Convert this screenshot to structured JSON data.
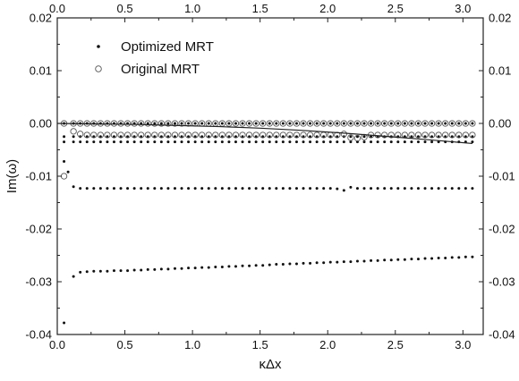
{
  "chart_data": {
    "type": "scatter",
    "xlabel": "κΔx",
    "ylabel": "Im(ω)",
    "xlim": [
      0,
      3.15
    ],
    "ylim": [
      -0.04,
      0.02
    ],
    "x_ticks": [
      "0.0",
      "0.5",
      "1.0",
      "1.5",
      "2.0",
      "2.5",
      "3.0"
    ],
    "y_ticks": [
      "-0.04",
      "-0.03",
      "-0.02",
      "-0.01",
      "0.00",
      "0.01",
      "0.02"
    ],
    "grid": false,
    "axes_mirrored": true,
    "legend_position": "top-left",
    "legend": [
      "Optimized MRT",
      "Original MRT"
    ],
    "colors": {
      "optimized": "#111111",
      "original": "#555555"
    },
    "series": [
      {
        "name": "Optimized MRT",
        "marker": "dot",
        "branches": [
          {
            "x": [
              0.05,
              0.12,
              0.17,
              0.22,
              0.27,
              0.32,
              0.37,
              0.42,
              0.47,
              0.52,
              0.57,
              0.62,
              0.67,
              0.72,
              0.77,
              0.82,
              0.87,
              0.92,
              0.97,
              1.02,
              1.07,
              1.12,
              1.17,
              1.22,
              1.27,
              1.32,
              1.37,
              1.42,
              1.47,
              1.52,
              1.57,
              1.62,
              1.67,
              1.72,
              1.77,
              1.82,
              1.87,
              1.92,
              1.97,
              2.02,
              2.07,
              2.12,
              2.17,
              2.22,
              2.27,
              2.32,
              2.37,
              2.42,
              2.47,
              2.52,
              2.57,
              2.62,
              2.67,
              2.72,
              2.77,
              2.82,
              2.87,
              2.92,
              2.97,
              3.02,
              3.07
            ],
            "y": [
              0,
              0,
              0,
              0,
              0,
              0,
              0,
              0,
              0,
              0,
              0,
              0,
              0,
              0,
              0,
              0,
              0,
              0,
              0,
              0,
              0,
              0,
              0,
              0,
              0,
              0,
              0,
              0,
              0,
              0,
              0,
              0,
              0,
              0,
              0,
              0,
              0,
              0,
              0,
              0,
              0,
              0,
              0,
              0,
              0,
              0,
              0,
              0,
              0,
              0,
              0,
              0,
              0,
              0,
              0,
              0,
              0,
              0,
              0,
              0,
              0
            ]
          },
          {
            "x": [
              0.05,
              0.12,
              0.17,
              0.22,
              0.27,
              0.32,
              0.37,
              0.42,
              0.47,
              0.52,
              0.57,
              0.62,
              0.67,
              0.72,
              0.77,
              0.82,
              0.87,
              0.92,
              0.97,
              1.02,
              1.07,
              1.12,
              1.17,
              1.22,
              1.27,
              1.32,
              1.37,
              1.42,
              1.47,
              1.52,
              1.57,
              1.62,
              1.67,
              1.72,
              1.77,
              1.82,
              1.87,
              1.92,
              1.97,
              2.02,
              2.07,
              2.12,
              2.17,
              2.22,
              2.27,
              2.32,
              2.37,
              2.42,
              2.47,
              2.52,
              2.57,
              2.62,
              2.67,
              2.72,
              2.77,
              2.82,
              2.87,
              2.92,
              2.97,
              3.02,
              3.07
            ],
            "y": [
              -0.0025,
              -0.0025,
              -0.0025,
              -0.0025,
              -0.0025,
              -0.0025,
              -0.0025,
              -0.0025,
              -0.0025,
              -0.0025,
              -0.0025,
              -0.0025,
              -0.0025,
              -0.0025,
              -0.0025,
              -0.0025,
              -0.0025,
              -0.0025,
              -0.0025,
              -0.0025,
              -0.0025,
              -0.0025,
              -0.0025,
              -0.0025,
              -0.0025,
              -0.0025,
              -0.0025,
              -0.0025,
              -0.0025,
              -0.0025,
              -0.0025,
              -0.0025,
              -0.0025,
              -0.0025,
              -0.0025,
              -0.0025,
              -0.0025,
              -0.0025,
              -0.0025,
              -0.0025,
              -0.0025,
              -0.0025,
              -0.0025,
              -0.0025,
              -0.0025,
              -0.0025,
              -0.0025,
              -0.0025,
              -0.0025,
              -0.0025,
              -0.0025,
              -0.0025,
              -0.0025,
              -0.0025,
              -0.0025,
              -0.0025,
              -0.0025,
              -0.0025,
              -0.0025,
              -0.0025,
              -0.0025
            ]
          },
          {
            "x": [
              0.05,
              0.12,
              0.17,
              0.22,
              0.27,
              0.32,
              0.37,
              0.42,
              0.47,
              0.52,
              0.57,
              0.62,
              0.67,
              0.72,
              0.77,
              0.82,
              0.87,
              0.92,
              0.97,
              1.02,
              1.07,
              1.12,
              1.17,
              1.22,
              1.27,
              1.32,
              1.37,
              1.42,
              1.47,
              1.52,
              1.57,
              1.62,
              1.67,
              1.72,
              1.77,
              1.82,
              1.87,
              1.92,
              1.97,
              2.02,
              2.07,
              2.12,
              2.17,
              2.22,
              2.27,
              2.32,
              2.37,
              2.42,
              2.47,
              2.52,
              2.57,
              2.62,
              2.67,
              2.72,
              2.77,
              2.82,
              2.87,
              2.92,
              2.97,
              3.02,
              3.07
            ],
            "y": [
              -0.0035,
              -0.0035,
              -0.0035,
              -0.0035,
              -0.0035,
              -0.0035,
              -0.0035,
              -0.0035,
              -0.0035,
              -0.0035,
              -0.0035,
              -0.0035,
              -0.0035,
              -0.0035,
              -0.0035,
              -0.0035,
              -0.0035,
              -0.0035,
              -0.0035,
              -0.0035,
              -0.0035,
              -0.0035,
              -0.0035,
              -0.0035,
              -0.0035,
              -0.0035,
              -0.0035,
              -0.0035,
              -0.0035,
              -0.0035,
              -0.0035,
              -0.0035,
              -0.0035,
              -0.0035,
              -0.0035,
              -0.0035,
              -0.0035,
              -0.0035,
              -0.0035,
              -0.0035,
              -0.0035,
              -0.0035,
              -0.0035,
              -0.0035,
              -0.0035,
              -0.0035,
              -0.0035,
              -0.0035,
              -0.0035,
              -0.0035,
              -0.0035,
              -0.0035,
              -0.0035,
              -0.0035,
              -0.0035,
              -0.0035,
              -0.0035,
              -0.0035,
              -0.0035,
              -0.0035,
              -0.0035
            ]
          },
          {
            "x": [
              0.05,
              0.08,
              0.12,
              0.17,
              0.22,
              0.27,
              0.32,
              0.37,
              0.42,
              0.47,
              0.52,
              0.57,
              0.62,
              0.67,
              0.72,
              0.77,
              0.82,
              0.87,
              0.92,
              0.97,
              1.02,
              1.07,
              1.12,
              1.17,
              1.22,
              1.27,
              1.32,
              1.37,
              1.42,
              1.47,
              1.52,
              1.57,
              1.62,
              1.67,
              1.72,
              1.77,
              1.82,
              1.87,
              1.92,
              1.97,
              2.02,
              2.07,
              2.12,
              2.17,
              2.22,
              2.27,
              2.32,
              2.37,
              2.42,
              2.47,
              2.52,
              2.57,
              2.62,
              2.67,
              2.72,
              2.77,
              2.82,
              2.87,
              2.92,
              2.97,
              3.02,
              3.07
            ],
            "y": [
              -0.0072,
              -0.0092,
              -0.012,
              -0.0123,
              -0.0123,
              -0.0123,
              -0.0123,
              -0.0123,
              -0.0123,
              -0.0123,
              -0.0123,
              -0.0123,
              -0.0123,
              -0.0123,
              -0.0123,
              -0.0123,
              -0.0123,
              -0.0123,
              -0.0123,
              -0.0123,
              -0.0123,
              -0.0123,
              -0.0123,
              -0.0123,
              -0.0123,
              -0.0123,
              -0.0123,
              -0.0123,
              -0.0123,
              -0.0123,
              -0.0123,
              -0.0123,
              -0.0123,
              -0.0123,
              -0.0123,
              -0.0123,
              -0.0123,
              -0.0123,
              -0.0123,
              -0.0123,
              -0.0123,
              -0.0124,
              -0.0127,
              -0.0121,
              -0.0123,
              -0.0123,
              -0.0123,
              -0.0123,
              -0.0123,
              -0.0123,
              -0.0123,
              -0.0123,
              -0.0123,
              -0.0123,
              -0.0123,
              -0.0123,
              -0.0123,
              -0.0123,
              -0.0123,
              -0.0123,
              -0.0123,
              -0.0123
            ]
          },
          {
            "x": [
              0.05,
              0.12,
              0.17,
              0.22,
              0.27,
              0.32,
              0.37,
              0.42,
              0.47,
              0.52,
              0.57,
              0.62,
              0.67,
              0.72,
              0.77,
              0.82,
              0.87,
              0.92,
              0.97,
              1.02,
              1.07,
              1.12,
              1.17,
              1.22,
              1.27,
              1.32,
              1.37,
              1.42,
              1.47,
              1.52,
              1.57,
              1.62,
              1.67,
              1.72,
              1.77,
              1.82,
              1.87,
              1.92,
              1.97,
              2.02,
              2.07,
              2.12,
              2.17,
              2.22,
              2.27,
              2.32,
              2.37,
              2.42,
              2.47,
              2.52,
              2.57,
              2.62,
              2.67,
              2.72,
              2.77,
              2.82,
              2.87,
              2.92,
              2.97,
              3.02,
              3.07
            ],
            "y": [
              -0.0378,
              -0.029,
              -0.0282,
              -0.0281,
              -0.028,
              -0.028,
              -0.028,
              -0.0279,
              -0.0279,
              -0.0279,
              -0.0278,
              -0.0278,
              -0.0277,
              -0.0277,
              -0.0276,
              -0.0276,
              -0.0275,
              -0.0275,
              -0.0274,
              -0.0274,
              -0.0273,
              -0.0273,
              -0.0272,
              -0.0272,
              -0.0271,
              -0.0271,
              -0.027,
              -0.027,
              -0.0269,
              -0.0269,
              -0.0268,
              -0.0267,
              -0.0267,
              -0.0266,
              -0.0266,
              -0.0265,
              -0.0265,
              -0.0264,
              -0.0264,
              -0.0263,
              -0.0263,
              -0.0262,
              -0.0262,
              -0.0261,
              -0.0261,
              -0.026,
              -0.026,
              -0.0259,
              -0.0259,
              -0.0258,
              -0.0258,
              -0.0257,
              -0.0257,
              -0.0256,
              -0.0256,
              -0.0255,
              -0.0255,
              -0.0254,
              -0.0254,
              -0.0253,
              -0.0253
            ]
          }
        ]
      },
      {
        "name": "Original MRT",
        "marker": "open-circle",
        "branches": [
          {
            "x": [
              0.05,
              0.12,
              0.17,
              0.22,
              0.27,
              0.32,
              0.37,
              0.42,
              0.47,
              0.52,
              0.57,
              0.62,
              0.67,
              0.72,
              0.77,
              0.82,
              0.87,
              0.92,
              0.97,
              1.02,
              1.07,
              1.12,
              1.17,
              1.22,
              1.27,
              1.32,
              1.37,
              1.42,
              1.47,
              1.52,
              1.57,
              1.62,
              1.67,
              1.72,
              1.77,
              1.82,
              1.87,
              1.92,
              1.97,
              2.02,
              2.07,
              2.12,
              2.17,
              2.22,
              2.27,
              2.32,
              2.37,
              2.42,
              2.47,
              2.52,
              2.57,
              2.62,
              2.67,
              2.72,
              2.77,
              2.82,
              2.87,
              2.92,
              2.97,
              3.02,
              3.07
            ],
            "y": [
              0,
              0,
              0,
              0,
              0,
              0,
              0,
              0,
              0,
              0,
              0,
              0,
              0,
              0,
              0,
              0,
              0,
              0,
              0,
              0,
              0,
              0,
              0,
              0,
              0,
              0,
              0,
              0,
              0,
              0,
              0,
              0,
              0,
              0,
              0,
              0,
              0,
              0,
              0,
              0,
              0,
              0,
              0,
              0,
              0,
              0,
              0,
              0,
              0,
              0,
              0,
              0,
              0,
              0,
              0,
              0,
              0,
              0,
              0,
              0,
              0
            ]
          },
          {
            "x": [
              0.12,
              0.17,
              0.22,
              0.27,
              0.32,
              0.37,
              0.42,
              0.47,
              0.52,
              0.57,
              0.62,
              0.67,
              0.72,
              0.77,
              0.82,
              0.87,
              0.92,
              0.97,
              1.02,
              1.07,
              1.12,
              1.17,
              1.22,
              1.27,
              1.32,
              1.37,
              1.42,
              1.47,
              1.52,
              1.57,
              1.62,
              1.67,
              1.72,
              1.77,
              1.82,
              1.87,
              1.92,
              1.97,
              2.02,
              2.07,
              2.12,
              2.17,
              2.22,
              2.27,
              2.32,
              2.37,
              2.42,
              2.47,
              2.52,
              2.57,
              2.62,
              2.67,
              2.72,
              2.77,
              2.82,
              2.87,
              2.92,
              2.97,
              3.02,
              3.07
            ],
            "y": [
              -0.0015,
              -0.002,
              -0.0022,
              -0.0022,
              -0.0022,
              -0.0022,
              -0.0022,
              -0.0022,
              -0.0022,
              -0.0022,
              -0.0022,
              -0.0022,
              -0.0022,
              -0.0022,
              -0.0022,
              -0.0022,
              -0.0022,
              -0.0022,
              -0.0022,
              -0.0022,
              -0.0022,
              -0.0022,
              -0.0022,
              -0.0022,
              -0.0022,
              -0.0022,
              -0.0022,
              -0.0022,
              -0.0022,
              -0.0022,
              -0.0022,
              -0.0022,
              -0.0022,
              -0.0022,
              -0.0022,
              -0.0022,
              -0.0022,
              -0.0022,
              -0.0022,
              -0.0022,
              -0.002,
              -0.0027,
              -0.0028,
              -0.0026,
              -0.0022,
              -0.0022,
              -0.0022,
              -0.0022,
              -0.0022,
              -0.0022,
              -0.0022,
              -0.0022,
              -0.0022,
              -0.0022,
              -0.0022,
              -0.0022,
              -0.0022,
              -0.0022,
              -0.0022,
              -0.0022
            ]
          },
          {
            "x": [
              0.05
            ],
            "y": [
              -0.01
            ]
          }
        ]
      },
      {
        "marker": "line",
        "x": [
          0.0,
          0.3,
          0.6,
          0.9,
          1.2,
          1.5,
          1.8,
          2.1,
          2.4,
          2.7,
          3.07
        ],
        "y": [
          0,
          -0.0001,
          -0.0002,
          -0.0004,
          -0.0006,
          -0.0009,
          -0.0013,
          -0.0018,
          -0.0024,
          -0.003,
          -0.0038
        ]
      }
    ]
  }
}
